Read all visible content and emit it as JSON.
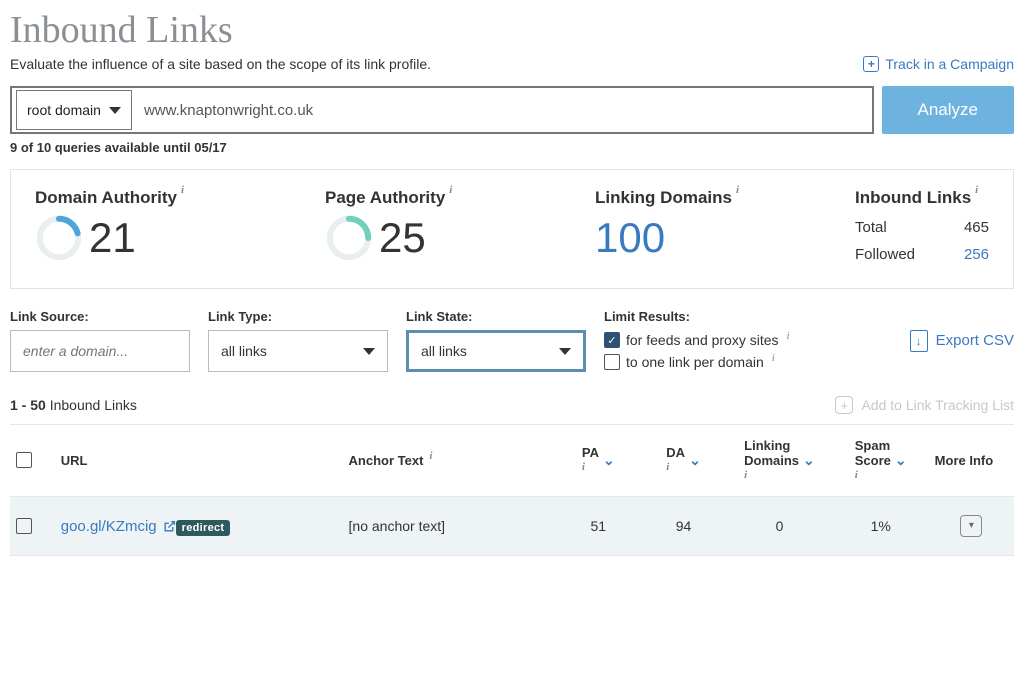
{
  "page": {
    "title": "Inbound Links",
    "subtitle": "Evaluate the influence of a site based on the scope of its link profile.",
    "track_label": "Track in a Campaign"
  },
  "search": {
    "scope_label": "root domain",
    "domain_value": "www.knaptonwright.co.uk",
    "analyze_label": "Analyze",
    "quota_text": "9 of 10 queries available until 05/17"
  },
  "metrics": {
    "da": {
      "label": "Domain Authority",
      "value": 21,
      "pct": 0.21,
      "color": "#4ea6d8",
      "track": "#e9eef0"
    },
    "pa": {
      "label": "Page Authority",
      "value": 25,
      "pct": 0.25,
      "color": "#6fd0bd",
      "track": "#e9eef0"
    },
    "linking_domains": {
      "label": "Linking Domains",
      "value": 100
    },
    "inbound": {
      "label": "Inbound Links",
      "rows": [
        {
          "k": "Total",
          "v": 465,
          "link": false
        },
        {
          "k": "Followed",
          "v": 256,
          "link": true
        }
      ]
    }
  },
  "filters": {
    "source": {
      "label": "Link Source:",
      "placeholder": "enter a domain..."
    },
    "type": {
      "label": "Link Type:",
      "value": "all links"
    },
    "state": {
      "label": "Link State:",
      "value": "all links"
    },
    "limit": {
      "label": "Limit Results:",
      "options": [
        {
          "text": "for feeds and proxy sites",
          "checked": true
        },
        {
          "text": "to one link per domain",
          "checked": false
        }
      ]
    },
    "export_label": "Export CSV"
  },
  "table": {
    "range_label": "1 - 50",
    "range_suffix": " Inbound Links",
    "add_list_label": "Add to Link Tracking List",
    "columns": {
      "url": "URL",
      "anchor": "Anchor Text",
      "pa": "PA",
      "da": "DA",
      "ld_l1": "Linking",
      "ld_l2": "Domains",
      "spam_l1": "Spam",
      "spam_l2": "Score",
      "more": "More Info"
    },
    "rows": [
      {
        "url": "goo.gl/KZmcig",
        "badge": "redirect",
        "anchor": "[no anchor text]",
        "pa": 51,
        "da": 94,
        "ld": 0,
        "spam": "1%"
      }
    ]
  },
  "colors": {
    "accent": "#3a7abf",
    "analyze_btn": "#6eb3e0"
  }
}
